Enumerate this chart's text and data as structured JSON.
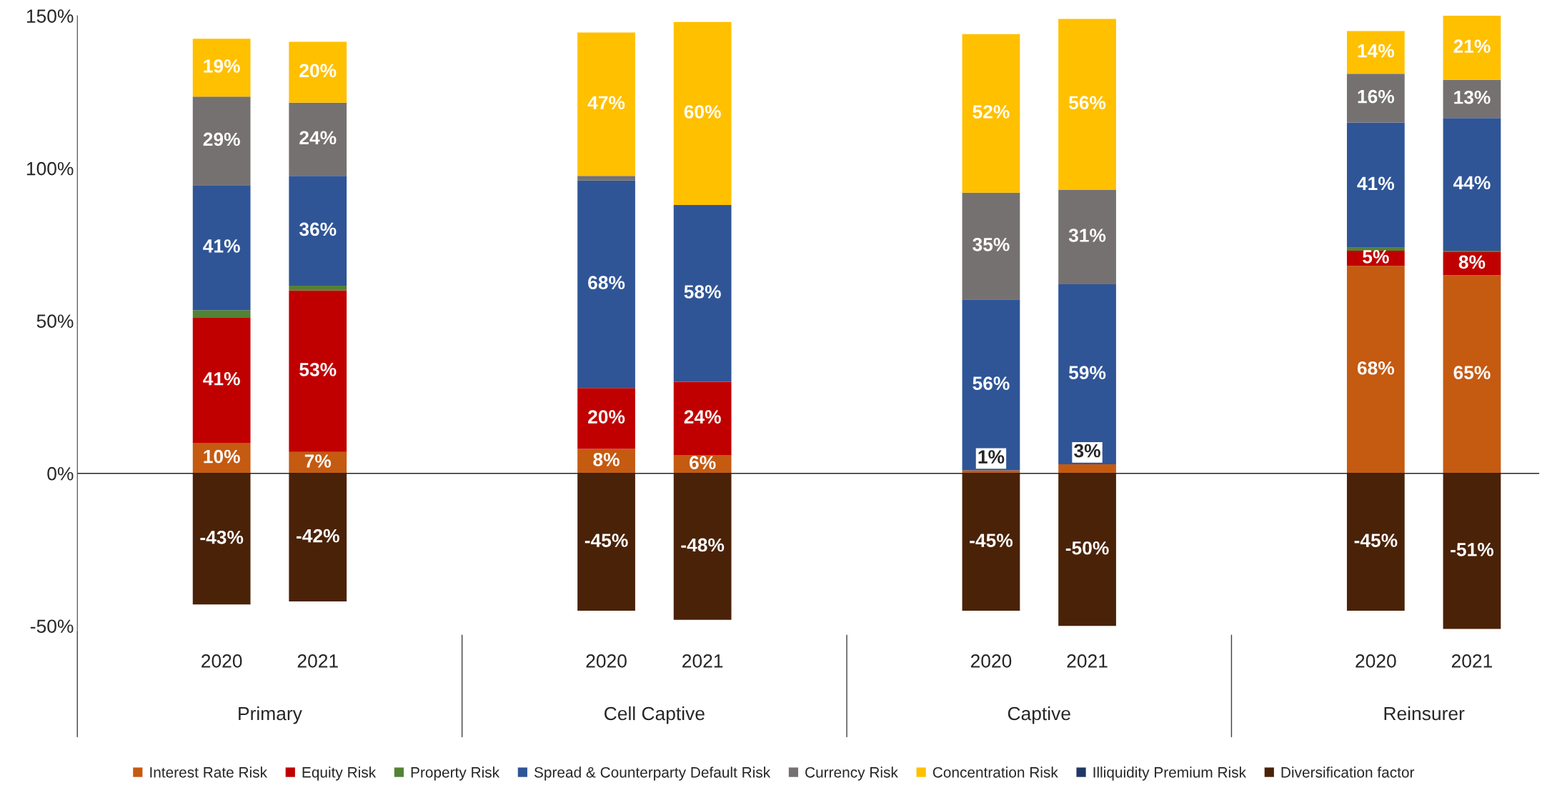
{
  "chart_data": {
    "type": "bar",
    "stacked": true,
    "categories": [
      "2020",
      "2021",
      null,
      null,
      "2020",
      "2021",
      null,
      null,
      "2020",
      "2021",
      null,
      null,
      "2020",
      "2021"
    ],
    "series": [
      {
        "name": "Interest Rate Risk",
        "color": "#c55a11",
        "values": [
          10,
          7,
          null,
          null,
          8,
          6,
          null,
          null,
          1,
          3,
          null,
          null,
          68,
          65
        ],
        "value_labels": [
          "10%",
          "7%",
          null,
          null,
          "8%",
          "6%",
          null,
          null,
          "1%",
          "3%",
          null,
          null,
          "68%",
          "65%"
        ]
      },
      {
        "name": "Equity Risk",
        "color": "#c00000",
        "values": [
          41,
          53,
          null,
          null,
          20,
          24,
          null,
          null,
          0,
          0,
          null,
          null,
          5,
          7.5
        ],
        "value_labels": [
          "41%",
          "53%",
          null,
          null,
          "20%",
          "24%",
          null,
          null,
          null,
          null,
          null,
          null,
          "5%",
          "8%"
        ]
      },
      {
        "name": "Property Risk",
        "color": "#548235",
        "values": [
          2.5,
          1.5,
          null,
          null,
          0,
          0,
          null,
          null,
          0,
          0,
          null,
          null,
          1,
          0.5
        ]
      },
      {
        "name": "Spread & Counterparty Default Risk",
        "color": "#2f5597",
        "values": [
          41,
          36,
          null,
          null,
          68,
          58,
          null,
          null,
          56,
          59,
          null,
          null,
          41,
          43.5
        ],
        "value_labels": [
          "41%",
          "36%",
          null,
          null,
          "68%",
          "58%",
          null,
          null,
          "56%",
          "59%",
          null,
          null,
          "41%",
          "44%"
        ]
      },
      {
        "name": "Currency Risk",
        "color": "#767171",
        "values": [
          29,
          24,
          null,
          null,
          1.5,
          0,
          null,
          null,
          35,
          31,
          null,
          null,
          16,
          12.5
        ],
        "value_labels": [
          "29%",
          "24%",
          null,
          null,
          null,
          null,
          null,
          null,
          "35%",
          "31%",
          null,
          null,
          "16%",
          "13%"
        ]
      },
      {
        "name": "Concentration Risk",
        "color": "#ffc000",
        "values": [
          19,
          20,
          null,
          null,
          47,
          60,
          null,
          null,
          52,
          56,
          null,
          null,
          14,
          21
        ],
        "value_labels": [
          "19%",
          "20%",
          null,
          null,
          "47%",
          "60%",
          null,
          null,
          "52%",
          "56%",
          null,
          null,
          "14%",
          "21%"
        ]
      },
      {
        "name": "Illiquidity Premium Risk",
        "color": "#203864",
        "values": [
          0,
          0,
          null,
          null,
          0,
          0,
          null,
          null,
          0,
          0,
          null,
          null,
          0,
          0
        ]
      },
      {
        "name": "Diversification factor",
        "color": "#4a2208",
        "values": [
          -43,
          -42,
          null,
          null,
          -45,
          -48,
          null,
          null,
          -45,
          -50,
          null,
          null,
          -45,
          -51
        ],
        "value_labels": [
          "-43%",
          "-42%",
          null,
          null,
          "-45%",
          "-48%",
          null,
          null,
          "-45%",
          "-50%",
          null,
          null,
          "-45%",
          "-51%"
        ]
      }
    ],
    "annotations": [
      "Primary",
      "Cell Captive",
      "Captive",
      "Reinsurer"
    ],
    "ylim": [
      -52,
      150
    ],
    "ref_lines": [
      {
        "axis": "y",
        "value": 0,
        "color": "#262626"
      }
    ],
    "yticks": [
      {
        "value": -50,
        "label": "-50%"
      },
      {
        "value": 0,
        "label": "0%"
      },
      {
        "value": 50,
        "label": "50%"
      },
      {
        "value": 100,
        "label": "100%"
      },
      {
        "value": 150,
        "label": "150%"
      }
    ],
    "grid": false,
    "legend": "bottom"
  }
}
